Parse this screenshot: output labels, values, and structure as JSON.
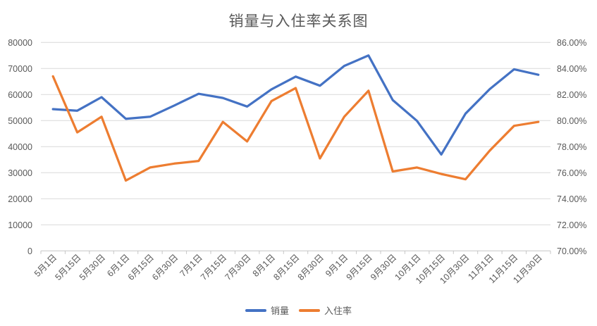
{
  "chart_data": {
    "type": "line",
    "title": "销量与入住率关系图",
    "categories": [
      "5月1日",
      "5月15日",
      "5月30日",
      "6月1日",
      "6月15日",
      "6月30日",
      "7月1日",
      "7月15日",
      "7月30日",
      "8月1日",
      "8月15日",
      "8月30日",
      "9月1日",
      "9月15日",
      "9月30日",
      "10月1日",
      "10月15日",
      "10月30日",
      "11月1日",
      "11月15日",
      "11月30日"
    ],
    "series": [
      {
        "key": "sales",
        "name": "销量",
        "axis": "left",
        "color": "#4472C4",
        "values": [
          54400,
          53800,
          59000,
          50700,
          51500,
          55800,
          60300,
          58700,
          55400,
          62000,
          66900,
          63400,
          71000,
          75000,
          57900,
          49900,
          37000,
          52700,
          62100,
          69700,
          67600
        ]
      },
      {
        "key": "occupancy",
        "name": "入住率",
        "axis": "right",
        "color": "#ED7D31",
        "values": [
          83.4,
          79.1,
          80.3,
          75.4,
          76.4,
          76.7,
          76.9,
          79.9,
          78.4,
          81.5,
          82.5,
          77.1,
          80.3,
          82.3,
          76.1,
          76.4,
          75.9,
          75.5,
          77.7,
          79.6,
          79.9
        ]
      }
    ],
    "left_axis": {
      "min": 0,
      "max": 80000,
      "step": 10000,
      "tick_labels": [
        "0",
        "10000",
        "20000",
        "30000",
        "40000",
        "50000",
        "60000",
        "70000",
        "80000"
      ]
    },
    "right_axis": {
      "min": 70,
      "max": 86,
      "step": 2,
      "tick_labels": [
        "70.00%",
        "72.00%",
        "74.00%",
        "76.00%",
        "78.00%",
        "80.00%",
        "82.00%",
        "84.00%",
        "86.00%"
      ]
    },
    "grid": true,
    "legend_position": "bottom"
  },
  "legend": {
    "items": [
      {
        "label": "销量",
        "color": "#4472C4"
      },
      {
        "label": "入住率",
        "color": "#ED7D31"
      }
    ]
  },
  "colors": {
    "background": "#FFFFFF",
    "grid": "#D9D9D9",
    "axis_line": "#C6C6C6",
    "tick_text": "#595959",
    "title_text": "#595959",
    "series_sales": "#4472C4",
    "series_occupancy": "#ED7D31"
  }
}
